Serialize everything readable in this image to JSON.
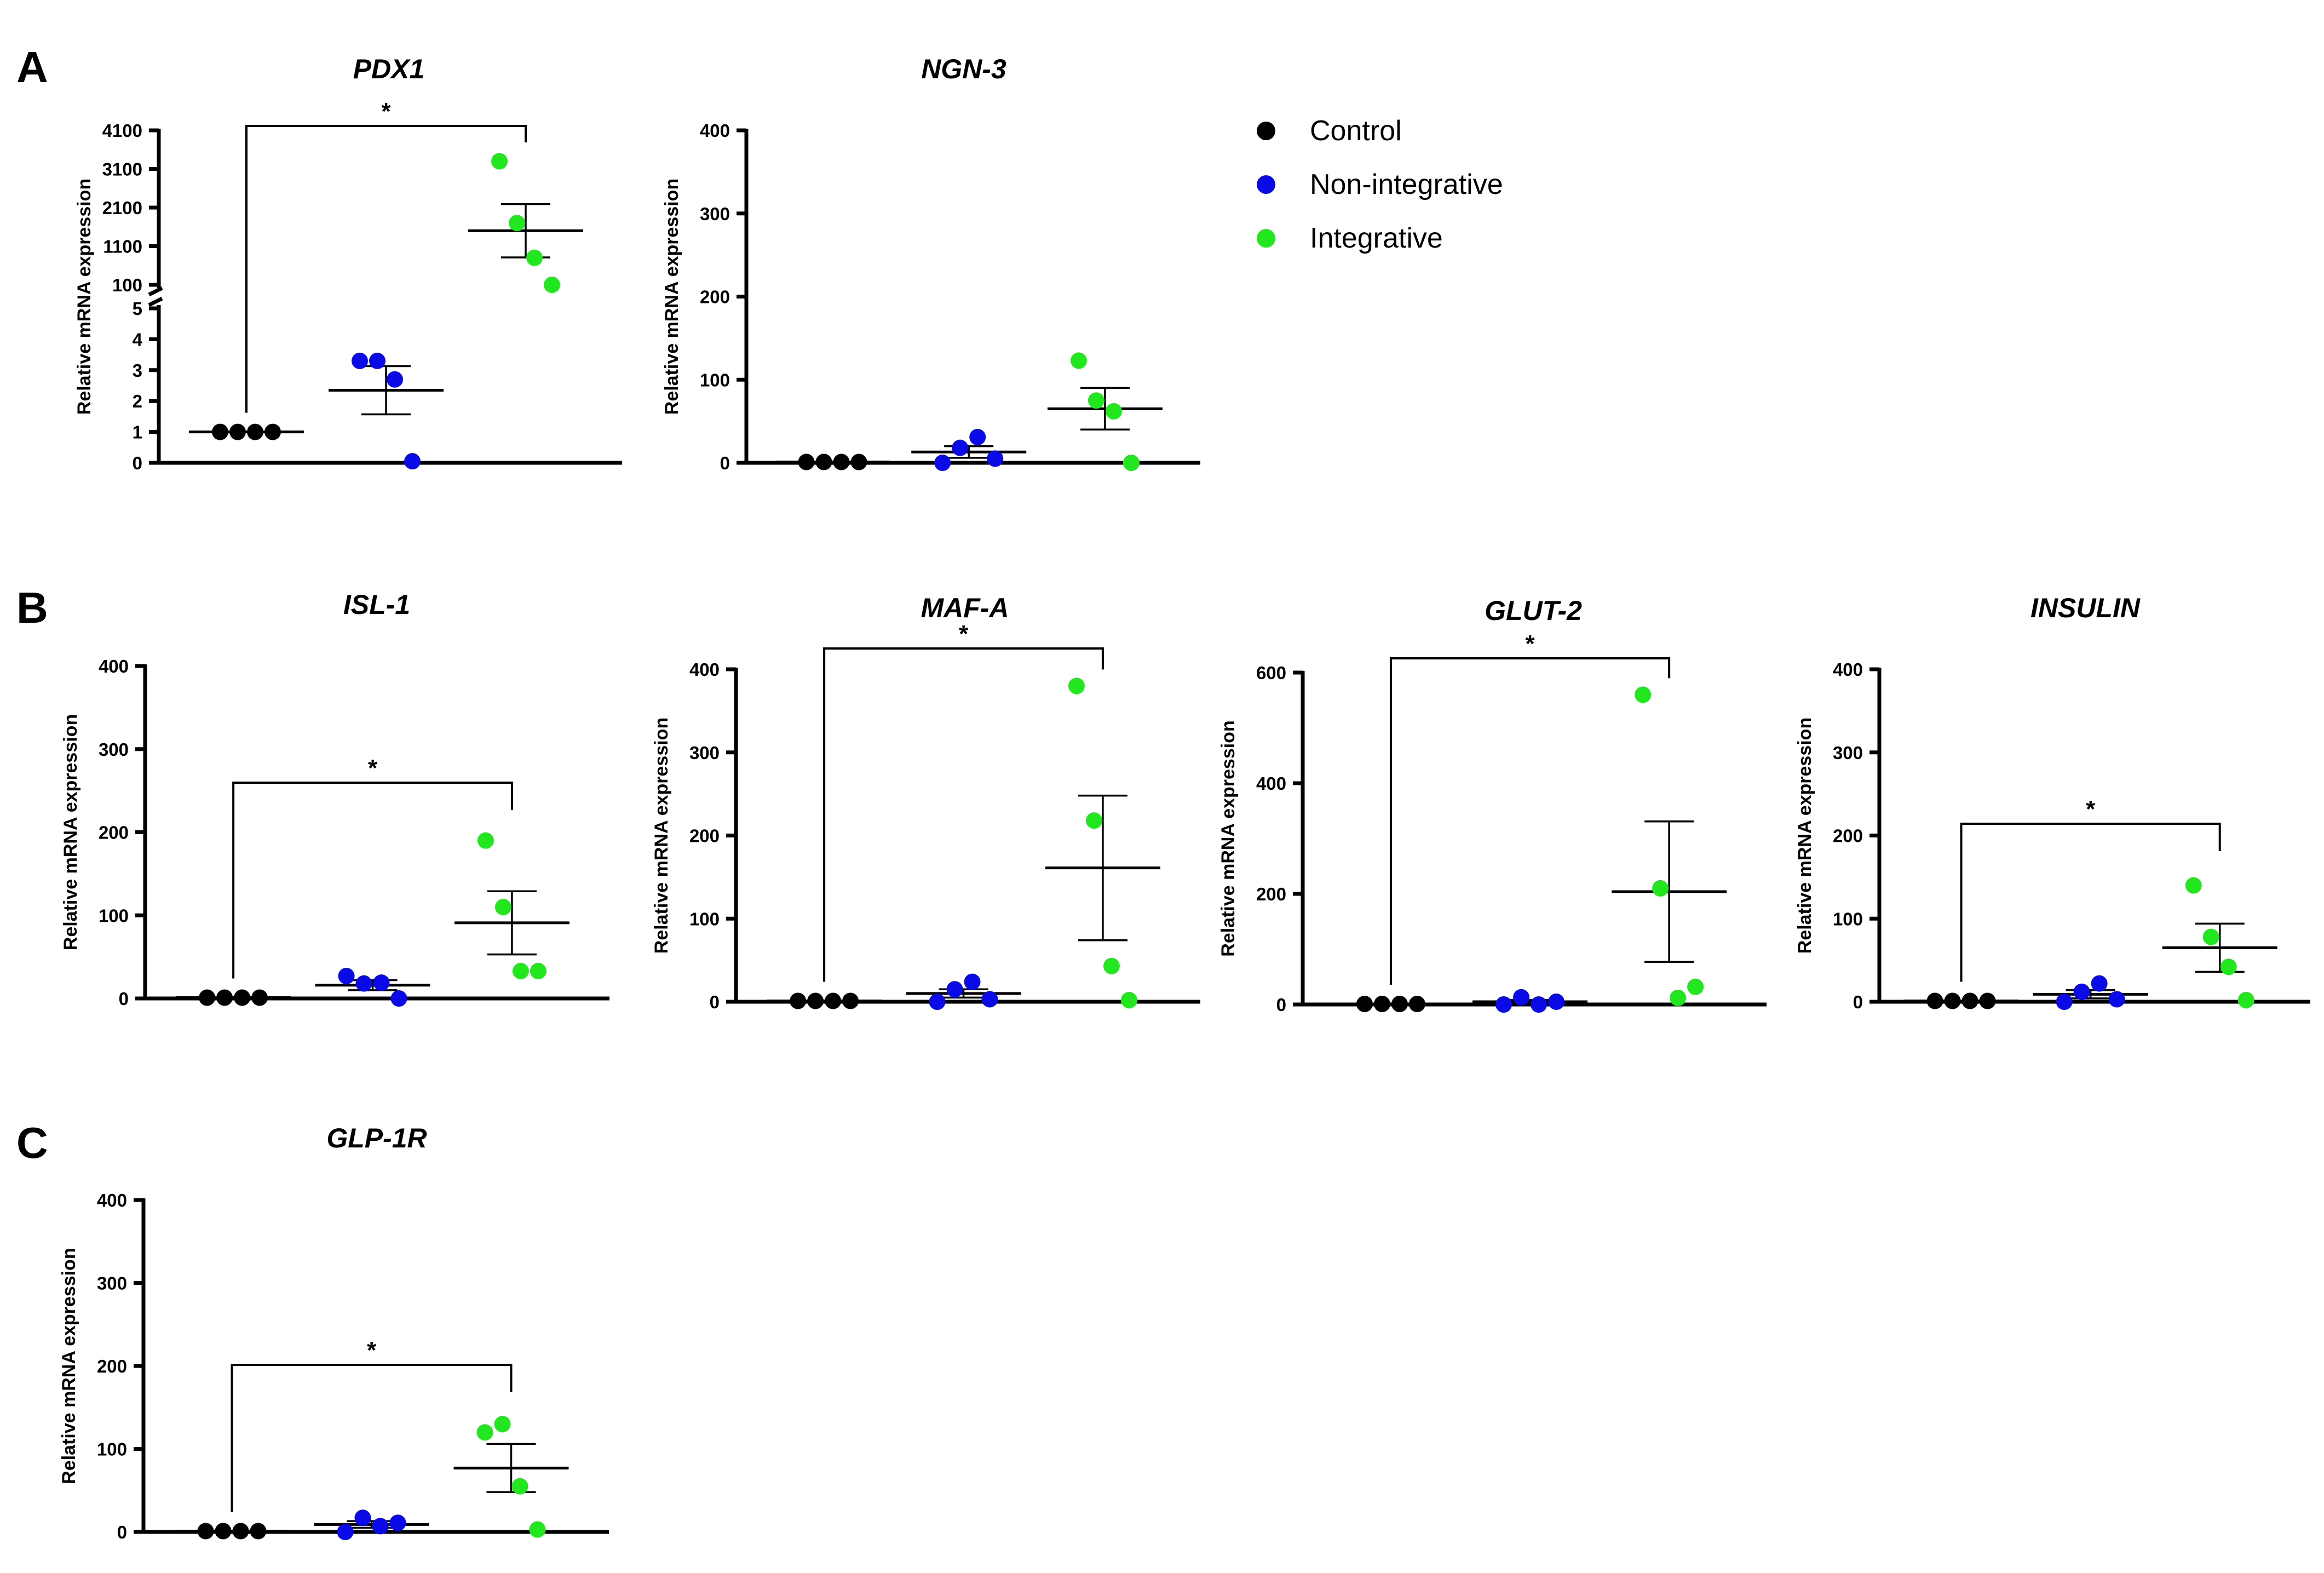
{
  "panel_letters": [
    "A",
    "B",
    "C"
  ],
  "y_label": "Relative mRNA expression",
  "legend": {
    "items": [
      {
        "label": "Control",
        "color": "#000000"
      },
      {
        "label": "Non-integrative",
        "color": "#0a0ae6"
      },
      {
        "label": "Integrative",
        "color": "#22e61e"
      }
    ]
  },
  "colors": {
    "control": "#000000",
    "non_integrative": "#0a0ae6",
    "integrative": "#22e61e",
    "axis": "#000000"
  },
  "chart_data": [
    {
      "id": "pdx1",
      "type": "scatter",
      "title": "PDX1",
      "broken_axis": true,
      "lower_ticks": [
        0,
        1,
        2,
        3,
        4,
        5
      ],
      "lower_ylim": [
        0,
        5
      ],
      "upper_ticks": [
        100,
        1100,
        2100,
        3100,
        4100
      ],
      "upper_ylim": [
        100,
        4100
      ],
      "groups": [
        {
          "name": "Control",
          "points": [
            1,
            1,
            1,
            1
          ],
          "mean": 1,
          "sem": 0
        },
        {
          "name": "Non-integrative",
          "points": [
            3.3,
            3.3,
            2.7,
            0.05
          ],
          "mean": 2.35,
          "sem": 0.78
        },
        {
          "name": "Integrative",
          "points": [
            3300,
            1700,
            800,
            100
          ],
          "mean": 1500,
          "sem": 690
        }
      ],
      "significance": [
        {
          "from": "Control",
          "to": "Integrative",
          "label": "*"
        }
      ]
    },
    {
      "id": "ngn3",
      "type": "scatter",
      "title": "NGN-3",
      "ylim": [
        0,
        400
      ],
      "ticks": [
        0,
        100,
        200,
        300,
        400
      ],
      "groups": [
        {
          "name": "Control",
          "points": [
            1,
            1,
            1,
            1
          ],
          "mean": 1,
          "sem": 0
        },
        {
          "name": "Non-integrative",
          "points": [
            0,
            18,
            31,
            5
          ],
          "mean": 13,
          "sem": 7
        },
        {
          "name": "Integrative",
          "points": [
            123,
            75,
            62,
            0
          ],
          "mean": 65,
          "sem": 25
        }
      ],
      "significance": []
    },
    {
      "id": "isl1",
      "type": "scatter",
      "title": "ISL-1",
      "ylim": [
        0,
        400
      ],
      "ticks": [
        0,
        100,
        200,
        300,
        400
      ],
      "groups": [
        {
          "name": "Control",
          "points": [
            1,
            1,
            1,
            1
          ],
          "mean": 1,
          "sem": 0
        },
        {
          "name": "Non-integrative",
          "points": [
            27,
            18,
            19,
            0
          ],
          "mean": 16,
          "sem": 6
        },
        {
          "name": "Integrative",
          "points": [
            190,
            110,
            33,
            33
          ],
          "mean": 91,
          "sem": 38
        }
      ],
      "significance": [
        {
          "from": "Control",
          "to": "Integrative",
          "label": "*"
        }
      ]
    },
    {
      "id": "mafa",
      "type": "scatter",
      "title": "MAF-A",
      "ylim": [
        0,
        400
      ],
      "ticks": [
        0,
        100,
        200,
        300,
        400
      ],
      "groups": [
        {
          "name": "Control",
          "points": [
            1,
            1,
            1,
            1
          ],
          "mean": 1,
          "sem": 0
        },
        {
          "name": "Non-integrative",
          "points": [
            0,
            15,
            24,
            3
          ],
          "mean": 10,
          "sem": 5
        },
        {
          "name": "Integrative",
          "points": [
            380,
            218,
            43,
            2
          ],
          "mean": 161,
          "sem": 87
        }
      ],
      "significance": [
        {
          "from": "Control",
          "to": "Integrative",
          "label": "*"
        }
      ]
    },
    {
      "id": "glut2",
      "type": "scatter",
      "title": "GLUT-2",
      "ylim": [
        0,
        600
      ],
      "ticks": [
        0,
        200,
        400,
        600
      ],
      "groups": [
        {
          "name": "Control",
          "points": [
            1,
            1,
            1,
            1
          ],
          "mean": 1,
          "sem": 0
        },
        {
          "name": "Non-integrative",
          "points": [
            0,
            13,
            0,
            5
          ],
          "mean": 5,
          "sem": 3
        },
        {
          "name": "Integrative",
          "points": [
            560,
            210,
            12,
            32
          ],
          "mean": 204,
          "sem": 127
        }
      ],
      "significance": [
        {
          "from": "Control",
          "to": "Integrative",
          "label": "*"
        }
      ]
    },
    {
      "id": "insulin",
      "type": "scatter",
      "title": "INSULIN",
      "ylim": [
        0,
        400
      ],
      "ticks": [
        0,
        100,
        200,
        300,
        400
      ],
      "groups": [
        {
          "name": "Control",
          "points": [
            1,
            1,
            1,
            1
          ],
          "mean": 1,
          "sem": 0
        },
        {
          "name": "Non-integrative",
          "points": [
            0,
            12,
            22,
            3
          ],
          "mean": 9,
          "sem": 5
        },
        {
          "name": "Integrative",
          "points": [
            140,
            78,
            42,
            2
          ],
          "mean": 65,
          "sem": 29
        }
      ],
      "significance": [
        {
          "from": "Control",
          "to": "Integrative",
          "label": "*"
        }
      ]
    },
    {
      "id": "glp1r",
      "type": "scatter",
      "title": "GLP-1R",
      "ylim": [
        0,
        400
      ],
      "ticks": [
        0,
        100,
        200,
        300,
        400
      ],
      "groups": [
        {
          "name": "Control",
          "points": [
            1,
            1,
            1,
            1
          ],
          "mean": 1,
          "sem": 0
        },
        {
          "name": "Non-integrative",
          "points": [
            0,
            17,
            7,
            11
          ],
          "mean": 9,
          "sem": 4
        },
        {
          "name": "Integrative",
          "points": [
            120,
            130,
            55,
            3
          ],
          "mean": 77,
          "sem": 29
        }
      ],
      "significance": [
        {
          "from": "Control",
          "to": "Integrative",
          "label": "*"
        }
      ]
    }
  ]
}
